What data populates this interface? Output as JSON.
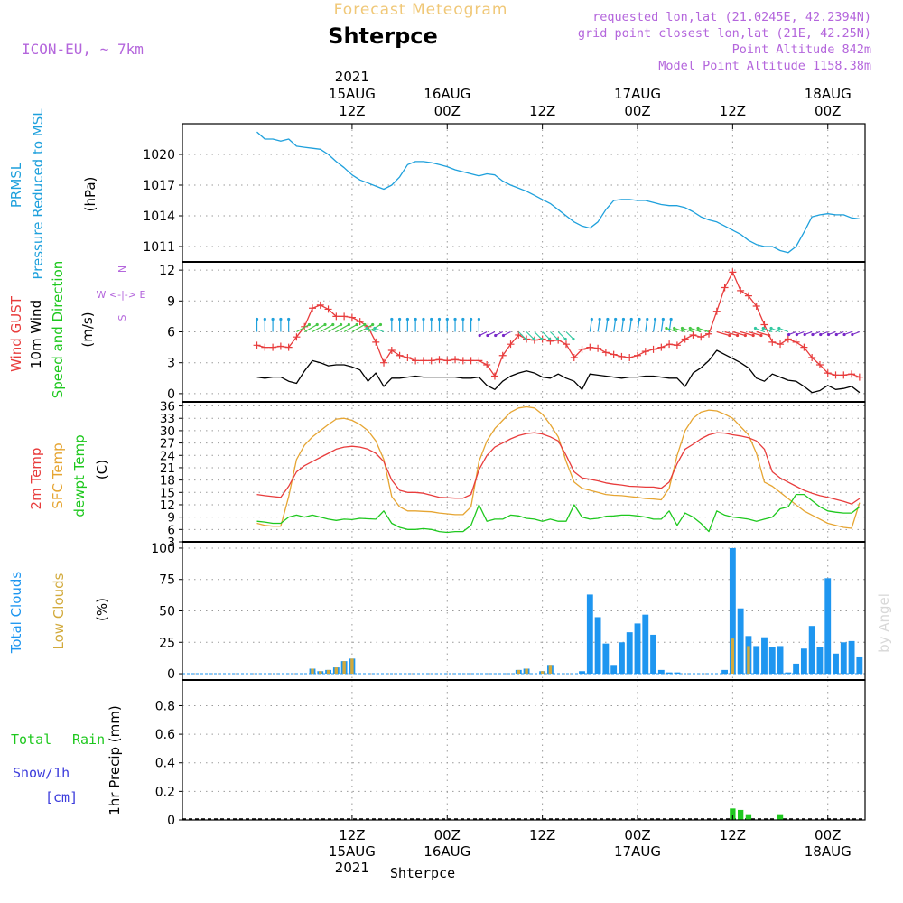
{
  "header": {
    "supertitle": "Forecast Meteogram",
    "station": "Shterpce",
    "model": "ICON-EU, ~ 7km",
    "requested": "requested lon,lat (21.0245E, 42.2394N)",
    "gridpoint": "grid point closest lon,lat (21E, 42.25N)",
    "point_alt": "Point Altitude 842m",
    "model_alt": "Model Point Altitude 1158.38m",
    "credit": "by Angel",
    "footer_station": "Shterpce"
  },
  "time_axis": {
    "top_labels": [
      {
        "h": 12,
        "lines": [
          "2021",
          "15AUG",
          "12Z"
        ]
      },
      {
        "h": 24,
        "lines": [
          "16AUG",
          "00Z"
        ]
      },
      {
        "h": 36,
        "lines": [
          "12Z"
        ]
      },
      {
        "h": 48,
        "lines": [
          "17AUG",
          "00Z"
        ]
      },
      {
        "h": 60,
        "lines": [
          "12Z"
        ]
      },
      {
        "h": 72,
        "lines": [
          "18AUG",
          "00Z"
        ]
      }
    ],
    "bottom_labels": [
      {
        "h": 12,
        "lines": [
          "12Z",
          "15AUG",
          "2021"
        ]
      },
      {
        "h": 24,
        "lines": [
          "00Z",
          "16AUG"
        ]
      },
      {
        "h": 36,
        "lines": [
          "12Z"
        ]
      },
      {
        "h": 48,
        "lines": [
          "00Z",
          "17AUG"
        ]
      },
      {
        "h": 60,
        "lines": [
          "12Z"
        ]
      },
      {
        "h": 72,
        "lines": [
          "00Z",
          "18AUG"
        ]
      }
    ]
  },
  "panel_labels": {
    "pressure": [
      "PRMSL",
      "Pressure Reduced to MSL",
      "(hPa)"
    ],
    "wind": [
      "Wind GUST",
      "10m Wind",
      "Speed and Direction",
      "(m/s)"
    ],
    "compass": [
      "N",
      "W <-|-> E",
      "S"
    ],
    "temp": [
      "2m Temp",
      "SFC Temp",
      "dewpt Temp",
      "(C)"
    ],
    "clouds": [
      "Total Clouds",
      "Low Clouds",
      "(%)"
    ],
    "precip": [
      "Total",
      "Rain",
      "Snow/1h",
      "[cm]",
      "1hr Precip (mm)"
    ]
  },
  "colors": {
    "pressure": "#1ea0dc",
    "gust": "#e83c3c",
    "wind": "#000000",
    "temp2m": "#e83c3c",
    "sfc": "#e6a532",
    "dewpt": "#1ec81e",
    "total_clouds": "#1e96f0",
    "low_clouds": "#d2aa3c",
    "rain": "#1ec81e",
    "snow": "#3c3cdc",
    "header": "#b466dc",
    "supertitle": "#f0c878"
  },
  "chart_data": [
    {
      "type": "line",
      "title": "PRMSL Pressure Reduced to MSL",
      "ylabel": "(hPa)",
      "ylim": [
        1009.5,
        1023.0
      ],
      "yticks": [
        1011,
        1014,
        1017,
        1020
      ],
      "x_hours_from_15AUG_00Z": [
        0,
        1,
        2,
        3,
        4,
        5,
        6,
        7,
        8,
        9,
        10,
        11,
        12,
        13,
        14,
        15,
        16,
        17,
        18,
        19,
        20,
        21,
        22,
        23,
        24,
        25,
        26,
        27,
        28,
        29,
        30,
        31,
        32,
        33,
        34,
        35,
        36,
        37,
        38,
        39,
        40,
        41,
        42,
        43,
        44,
        45,
        46,
        47,
        48,
        49,
        50,
        51,
        52,
        53,
        54,
        55,
        56,
        57,
        58,
        59,
        60,
        61,
        62,
        63,
        64,
        65,
        66,
        67,
        68,
        69,
        70,
        71,
        72,
        73,
        74,
        75,
        76
      ],
      "series": [
        {
          "name": "PRMSL",
          "values": [
            1022.2,
            1021.5,
            1021.5,
            1021.3,
            1021.5,
            1020.8,
            1020.7,
            1020.6,
            1020.5,
            1020.0,
            1019.3,
            1018.7,
            1018.0,
            1017.5,
            1017.2,
            1016.9,
            1016.6,
            1017.0,
            1017.8,
            1019.0,
            1019.3,
            1019.3,
            1019.2,
            1019.0,
            1018.8,
            1018.5,
            1018.3,
            1018.1,
            1017.9,
            1018.1,
            1018.0,
            1017.4,
            1017.0,
            1016.7,
            1016.4,
            1016.0,
            1015.6,
            1015.2,
            1014.6,
            1014.0,
            1013.4,
            1013.0,
            1012.8,
            1013.4,
            1014.6,
            1015.5,
            1015.6,
            1015.6,
            1015.5,
            1015.5,
            1015.3,
            1015.1,
            1015.0,
            1015.0,
            1014.8,
            1014.4,
            1013.9,
            1013.6,
            1013.4,
            1013.0,
            1012.6,
            1012.2,
            1011.6,
            1011.2,
            1011.0,
            1011.0,
            1010.6,
            1010.4,
            1011.0,
            1012.4,
            1013.9,
            1014.1,
            1014.2,
            1014.1,
            1014.1,
            1013.8,
            1013.7
          ]
        }
      ]
    },
    {
      "type": "line",
      "title": "Wind GUST / 10m Wind Speed and Direction",
      "ylabel": "(m/s)",
      "ylim": [
        -0.8,
        12.8
      ],
      "yticks": [
        0,
        3,
        6,
        9,
        12
      ],
      "x_hours_from_15AUG_00Z": [
        0,
        1,
        2,
        3,
        4,
        5,
        6,
        7,
        8,
        9,
        10,
        11,
        12,
        13,
        14,
        15,
        16,
        17,
        18,
        19,
        20,
        21,
        22,
        23,
        24,
        25,
        26,
        27,
        28,
        29,
        30,
        31,
        32,
        33,
        34,
        35,
        36,
        37,
        38,
        39,
        40,
        41,
        42,
        43,
        44,
        45,
        46,
        47,
        48,
        49,
        50,
        51,
        52,
        53,
        54,
        55,
        56,
        57,
        58,
        59,
        60,
        61,
        62,
        63,
        64,
        65,
        66,
        67,
        68,
        69,
        70,
        71,
        72,
        73,
        74,
        75,
        76
      ],
      "series": [
        {
          "name": "Wind GUST",
          "values": [
            4.7,
            4.5,
            4.5,
            4.6,
            4.5,
            5.5,
            6.5,
            8.3,
            8.6,
            8.2,
            7.5,
            7.5,
            7.4,
            7.0,
            6.5,
            5.0,
            3.0,
            4.2,
            3.7,
            3.5,
            3.2,
            3.2,
            3.2,
            3.3,
            3.2,
            3.3,
            3.2,
            3.2,
            3.2,
            2.8,
            1.7,
            3.7,
            4.8,
            5.7,
            5.3,
            5.2,
            5.3,
            5.1,
            5.2,
            4.8,
            3.5,
            4.3,
            4.5,
            4.4,
            4.0,
            3.8,
            3.6,
            3.5,
            3.7,
            4.1,
            4.3,
            4.5,
            4.8,
            4.7,
            5.3,
            5.7,
            5.5,
            5.8,
            8.0,
            10.3,
            11.8,
            10.0,
            9.5,
            8.5,
            6.7,
            5.0,
            4.8,
            5.3,
            5.0,
            4.5,
            3.5,
            2.8,
            2.0,
            1.8,
            1.8,
            1.9,
            1.6
          ]
        },
        {
          "name": "10m Wind",
          "values": [
            1.6,
            1.5,
            1.6,
            1.6,
            1.2,
            1.0,
            2.2,
            3.2,
            3.0,
            2.7,
            2.8,
            2.8,
            2.6,
            2.3,
            1.2,
            2.0,
            0.7,
            1.5,
            1.5,
            1.6,
            1.7,
            1.6,
            1.6,
            1.6,
            1.6,
            1.6,
            1.5,
            1.5,
            1.6,
            0.8,
            0.4,
            1.2,
            1.7,
            2.0,
            2.2,
            2.0,
            1.6,
            1.5,
            1.9,
            1.5,
            1.2,
            0.4,
            1.9,
            1.8,
            1.7,
            1.6,
            1.5,
            1.6,
            1.6,
            1.7,
            1.7,
            1.6,
            1.5,
            1.5,
            0.7,
            2.0,
            2.5,
            3.2,
            4.2,
            3.8,
            3.4,
            3.0,
            2.5,
            1.5,
            1.2,
            1.9,
            1.6,
            1.3,
            1.2,
            0.7,
            0.1,
            0.3,
            0.8,
            0.4,
            0.5,
            0.7,
            0.1
          ]
        }
      ]
    },
    {
      "type": "line",
      "title": "2m Temp / SFC Temp / dewpt Temp",
      "ylabel": "(C)",
      "ylim": [
        3,
        37
      ],
      "yticks": [
        3,
        6,
        9,
        12,
        15,
        18,
        21,
        24,
        27,
        30,
        33,
        36
      ],
      "x_hours_from_15AUG_00Z": [
        0,
        1,
        2,
        3,
        4,
        5,
        6,
        7,
        8,
        9,
        10,
        11,
        12,
        13,
        14,
        15,
        16,
        17,
        18,
        19,
        20,
        21,
        22,
        23,
        24,
        25,
        26,
        27,
        28,
        29,
        30,
        31,
        32,
        33,
        34,
        35,
        36,
        37,
        38,
        39,
        40,
        41,
        42,
        43,
        44,
        45,
        46,
        47,
        48,
        49,
        50,
        51,
        52,
        53,
        54,
        55,
        56,
        57,
        58,
        59,
        60,
        61,
        62,
        63,
        64,
        65,
        66,
        67,
        68,
        69,
        70,
        71,
        72,
        73,
        74,
        75,
        76
      ],
      "series": [
        {
          "name": "2m Temp",
          "values": [
            14.5,
            14.2,
            14.0,
            13.8,
            16.5,
            20.0,
            21.5,
            22.5,
            23.5,
            24.5,
            25.5,
            26.0,
            26.2,
            26.0,
            25.5,
            24.5,
            22.5,
            18.0,
            15.5,
            15.0,
            15.0,
            14.8,
            14.3,
            13.8,
            13.7,
            13.6,
            13.6,
            14.5,
            20.5,
            24.0,
            26.0,
            27.0,
            28.0,
            28.8,
            29.3,
            29.5,
            29.2,
            28.5,
            27.5,
            24.0,
            20.0,
            18.5,
            18.2,
            17.8,
            17.3,
            17.0,
            16.8,
            16.5,
            16.4,
            16.3,
            16.3,
            16.0,
            17.5,
            22.0,
            25.5,
            26.7,
            28.0,
            29.0,
            29.5,
            29.4,
            29.0,
            28.7,
            28.3,
            27.5,
            25.5,
            20.0,
            18.5,
            17.5,
            16.5,
            15.5,
            14.8,
            14.2,
            13.8,
            13.3,
            12.8,
            12.2,
            13.5
          ]
        },
        {
          "name": "SFC Temp",
          "values": [
            7.5,
            7.0,
            6.8,
            6.8,
            14.0,
            23.0,
            26.5,
            28.5,
            30.0,
            31.5,
            32.8,
            33.0,
            32.5,
            31.5,
            30.0,
            27.5,
            23.0,
            14.0,
            11.5,
            10.5,
            10.5,
            10.4,
            10.3,
            10.0,
            9.8,
            9.6,
            9.6,
            11.5,
            22.5,
            27.5,
            30.5,
            32.5,
            34.5,
            35.5,
            35.8,
            35.5,
            34.0,
            31.5,
            28.5,
            22.5,
            17.5,
            16.0,
            15.5,
            15.0,
            14.5,
            14.3,
            14.2,
            14.0,
            13.8,
            13.5,
            13.4,
            13.2,
            16.0,
            24.0,
            30.0,
            33.0,
            34.5,
            35.0,
            34.8,
            34.0,
            33.0,
            31.0,
            29.0,
            24.5,
            17.5,
            16.5,
            15.0,
            13.5,
            12.0,
            10.5,
            9.5,
            8.5,
            7.5,
            7.0,
            6.5,
            6.3,
            12.5
          ]
        },
        {
          "name": "dewpt Temp",
          "values": [
            8.0,
            7.8,
            7.5,
            7.5,
            9.0,
            9.5,
            9.0,
            9.5,
            9.0,
            8.5,
            8.2,
            8.5,
            8.4,
            8.7,
            8.6,
            8.5,
            10.5,
            7.5,
            6.5,
            6.0,
            6.0,
            6.2,
            6.0,
            5.5,
            5.3,
            5.5,
            5.5,
            7.0,
            12.0,
            8.0,
            8.5,
            8.5,
            9.5,
            9.3,
            8.7,
            8.5,
            8.0,
            8.5,
            8.0,
            8.0,
            12.0,
            9.0,
            8.5,
            8.7,
            9.2,
            9.3,
            9.5,
            9.5,
            9.3,
            9.0,
            8.5,
            8.5,
            10.5,
            7.0,
            10.0,
            9.0,
            7.5,
            5.5,
            10.5,
            9.5,
            9.0,
            8.8,
            8.5,
            8.0,
            8.5,
            9.0,
            11.0,
            11.5,
            14.5,
            14.5,
            13.0,
            11.5,
            10.5,
            10.2,
            10.0,
            10.0,
            11.5
          ]
        }
      ]
    },
    {
      "type": "bar",
      "title": "Total Clouds / Low Clouds",
      "ylabel": "(%)",
      "ylim": [
        -5,
        105
      ],
      "yticks": [
        0,
        25,
        50,
        75,
        100
      ],
      "x_hours_from_15AUG_00Z": [
        7,
        8,
        9,
        10,
        11,
        12,
        33,
        34,
        36,
        37,
        41,
        42,
        43,
        44,
        45,
        46,
        47,
        48,
        49,
        50,
        51,
        52,
        53,
        59,
        60,
        61,
        62,
        63,
        64,
        65,
        66,
        67,
        68,
        69,
        70,
        71,
        72,
        73,
        74,
        75,
        76
      ],
      "series": [
        {
          "name": "Total Clouds",
          "values": [
            4,
            2,
            3,
            5,
            10,
            12,
            3,
            4,
            2,
            7,
            2,
            63,
            45,
            24,
            7,
            25,
            33,
            40,
            47,
            31,
            3,
            1,
            1,
            3,
            100,
            52,
            30,
            22,
            29,
            21,
            22,
            1,
            8,
            20,
            38,
            21,
            76,
            16,
            25,
            26,
            13
          ]
        },
        {
          "name": "Low Clouds",
          "values": [
            4,
            2,
            3,
            5,
            10,
            12,
            3,
            4,
            2,
            7,
            0,
            0,
            0,
            0,
            0,
            0,
            0,
            0,
            0,
            0,
            0,
            0,
            0,
            0,
            28,
            0,
            22,
            0,
            0,
            0,
            0,
            0,
            0,
            0,
            0,
            0,
            0,
            0,
            0,
            0,
            0
          ]
        }
      ]
    },
    {
      "type": "bar",
      "title": "1hr Precip",
      "ylabel": "1hr Precip (mm)",
      "ylim": [
        0,
        0.98
      ],
      "yticks": [
        "0",
        "0.2",
        "0.4",
        "0.6",
        "0.8"
      ],
      "x_hours_from_15AUG_00Z": [
        60,
        61,
        62,
        66
      ],
      "series": [
        {
          "name": "Total Rain",
          "values": [
            0.08,
            0.07,
            0.04,
            0.04
          ]
        }
      ]
    }
  ]
}
